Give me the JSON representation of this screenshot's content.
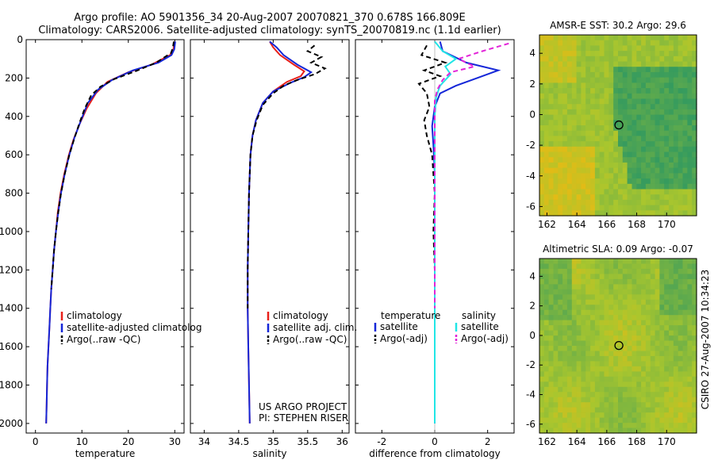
{
  "header": {
    "line1": "Argo profile: AO 5901356_34 20-Aug-2007 20070821_370 0.678S 166.809E",
    "line2": "Climatology: CARS2006. Satellite-adjusted climatology: synTS_20070819.nc (1.1d earlier)"
  },
  "colors": {
    "red": "#e8201a",
    "blue": "#1426d8",
    "black": "#000000",
    "cyan": "#21e6e6",
    "magenta": "#e224d8"
  },
  "chart_data": [
    {
      "id": "temperature",
      "type": "line",
      "xlabel": "temperature",
      "xlim": [
        -2,
        32
      ],
      "ylim": [
        0,
        2050
      ],
      "xticks": [
        0,
        10,
        20,
        30
      ],
      "yticks": [
        0,
        200,
        400,
        600,
        800,
        1000,
        1200,
        1400,
        1600,
        1800,
        2000
      ],
      "legend": [
        "climatology",
        "satellite-adjusted climatolog",
        "Argo(..raw -QC)"
      ],
      "series": [
        {
          "name": "climatology",
          "color": "red",
          "dash": false,
          "points": [
            [
              30.0,
              10
            ],
            [
              29.7,
              50
            ],
            [
              29.0,
              80
            ],
            [
              25.0,
              130
            ],
            [
              20.0,
              170
            ],
            [
              15.5,
              220
            ],
            [
              13.0,
              280
            ],
            [
              11.0,
              360
            ],
            [
              9.5,
              440
            ],
            [
              8.2,
              520
            ],
            [
              7.2,
              600
            ],
            [
              6.2,
              700
            ],
            [
              5.4,
              800
            ],
            [
              4.8,
              900
            ],
            [
              4.4,
              1000
            ],
            [
              4.0,
              1100
            ],
            [
              3.7,
              1200
            ],
            [
              3.4,
              1300
            ],
            [
              3.2,
              1400
            ],
            [
              3.0,
              1500
            ],
            [
              2.8,
              1600
            ],
            [
              2.6,
              1700
            ],
            [
              2.5,
              1800
            ],
            [
              2.4,
              1900
            ],
            [
              2.3,
              2000
            ]
          ]
        },
        {
          "name": "satellite-adjusted climatology",
          "color": "blue",
          "dash": false,
          "points": [
            [
              30.1,
              10
            ],
            [
              29.9,
              50
            ],
            [
              29.3,
              80
            ],
            [
              26.5,
              120
            ],
            [
              21.0,
              160
            ],
            [
              16.5,
              210
            ],
            [
              13.5,
              260
            ],
            [
              11.3,
              330
            ],
            [
              9.8,
              420
            ],
            [
              8.4,
              510
            ],
            [
              7.3,
              600
            ],
            [
              6.3,
              700
            ],
            [
              5.5,
              800
            ],
            [
              4.9,
              900
            ],
            [
              4.4,
              1000
            ],
            [
              4.0,
              1100
            ],
            [
              3.7,
              1200
            ],
            [
              3.4,
              1300
            ],
            [
              3.2,
              1400
            ],
            [
              3.0,
              1500
            ],
            [
              2.8,
              1600
            ],
            [
              2.6,
              1700
            ],
            [
              2.5,
              1800
            ],
            [
              2.4,
              1900
            ],
            [
              2.3,
              2000
            ]
          ]
        },
        {
          "name": "Argo(..raw -QC)",
          "color": "black",
          "dash": true,
          "points": [
            [
              29.8,
              10
            ],
            [
              29.6,
              40
            ],
            [
              29.2,
              70
            ],
            [
              26.0,
              120
            ],
            [
              21.5,
              165
            ],
            [
              17.0,
              205
            ],
            [
              14.0,
              245
            ],
            [
              12.0,
              290
            ],
            [
              10.6,
              360
            ],
            [
              9.4,
              440
            ],
            [
              8.3,
              520
            ],
            [
              7.3,
              600
            ],
            [
              6.3,
              700
            ],
            [
              5.5,
              800
            ],
            [
              4.9,
              900
            ],
            [
              4.4,
              1000
            ],
            [
              4.0,
              1100
            ],
            [
              3.7,
              1200
            ],
            [
              3.4,
              1300
            ]
          ]
        }
      ]
    },
    {
      "id": "salinity",
      "type": "line",
      "xlabel": "salinity",
      "xlim": [
        33.8,
        36.1
      ],
      "ylim": [
        0,
        2050
      ],
      "xticks": [
        34,
        34.5,
        35,
        35.5,
        36
      ],
      "legend": [
        "climatology",
        "satellite adj. clim.",
        "Argo(..raw -QC)"
      ],
      "annotation": [
        "US ARGO PROJECT",
        "PI: STEPHEN RISER"
      ],
      "series": [
        {
          "name": "climatology",
          "color": "red",
          "dash": false,
          "points": [
            [
              34.95,
              10
            ],
            [
              35.0,
              40
            ],
            [
              35.1,
              80
            ],
            [
              35.3,
              130
            ],
            [
              35.45,
              165
            ],
            [
              35.4,
              190
            ],
            [
              35.2,
              220
            ],
            [
              35.0,
              270
            ],
            [
              34.85,
              330
            ],
            [
              34.75,
              420
            ],
            [
              34.7,
              500
            ],
            [
              34.67,
              600
            ],
            [
              34.65,
              800
            ],
            [
              34.64,
              1000
            ],
            [
              34.63,
              1200
            ],
            [
              34.63,
              1400
            ],
            [
              34.64,
              1600
            ],
            [
              34.65,
              1800
            ],
            [
              34.66,
              2000
            ]
          ]
        },
        {
          "name": "satellite adj. clim.",
          "color": "blue",
          "dash": false,
          "points": [
            [
              34.95,
              10
            ],
            [
              35.05,
              40
            ],
            [
              35.15,
              80
            ],
            [
              35.35,
              130
            ],
            [
              35.55,
              170
            ],
            [
              35.45,
              195
            ],
            [
              35.25,
              225
            ],
            [
              35.0,
              270
            ],
            [
              34.85,
              330
            ],
            [
              34.75,
              420
            ],
            [
              34.7,
              500
            ],
            [
              34.67,
              600
            ],
            [
              34.65,
              800
            ],
            [
              34.64,
              1000
            ],
            [
              34.63,
              1200
            ],
            [
              34.63,
              1400
            ],
            [
              34.64,
              1600
            ],
            [
              34.65,
              1800
            ],
            [
              34.66,
              2000
            ]
          ]
        },
        {
          "name": "Argo(..raw -QC)",
          "color": "black",
          "dash": true,
          "points": [
            [
              35.6,
              30
            ],
            [
              35.5,
              60
            ],
            [
              35.7,
              90
            ],
            [
              35.55,
              120
            ],
            [
              35.75,
              150
            ],
            [
              35.6,
              180
            ],
            [
              35.35,
              210
            ],
            [
              35.15,
              240
            ],
            [
              35.0,
              280
            ],
            [
              34.85,
              340
            ],
            [
              34.76,
              420
            ],
            [
              34.7,
              500
            ],
            [
              34.67,
              600
            ],
            [
              34.65,
              800
            ],
            [
              34.64,
              1000
            ],
            [
              34.63,
              1200
            ],
            [
              34.63,
              1400
            ]
          ]
        }
      ]
    },
    {
      "id": "difference",
      "type": "line",
      "xlabel": "difference from climatology",
      "xlim": [
        -3,
        3
      ],
      "ylim": [
        0,
        2050
      ],
      "xticks": [
        -2,
        0,
        2
      ],
      "legend_t": [
        "temperature",
        "satellite",
        "Argo(-adj)"
      ],
      "legend_s": [
        "salinity",
        "satellite",
        "Argo(-adj)"
      ],
      "series": [
        {
          "name": "temperature satellite",
          "color": "blue",
          "dash": false,
          "points": [
            [
              0.2,
              10
            ],
            [
              0.3,
              60
            ],
            [
              1.2,
              120
            ],
            [
              2.4,
              160
            ],
            [
              1.6,
              200
            ],
            [
              0.8,
              240
            ],
            [
              0.2,
              280
            ],
            [
              0.0,
              350
            ],
            [
              -0.1,
              450
            ],
            [
              -0.05,
              550
            ],
            [
              0.0,
              700
            ],
            [
              0.0,
              900
            ],
            [
              0.0,
              1100
            ],
            [
              0.0,
              1300
            ],
            [
              0.0,
              1500
            ],
            [
              0.0,
              1700
            ],
            [
              0.0,
              1900
            ],
            [
              0.0,
              2000
            ]
          ]
        },
        {
          "name": "temperature Argo(-adj)",
          "color": "black",
          "dash": true,
          "points": [
            [
              -0.3,
              30
            ],
            [
              -0.5,
              80
            ],
            [
              0.4,
              120
            ],
            [
              -0.4,
              160
            ],
            [
              0.2,
              190
            ],
            [
              -0.6,
              230
            ],
            [
              -0.3,
              280
            ],
            [
              -0.2,
              350
            ],
            [
              -0.4,
              420
            ],
            [
              -0.3,
              500
            ],
            [
              -0.1,
              600
            ],
            [
              -0.05,
              700
            ],
            [
              0.0,
              800
            ],
            [
              -0.05,
              1000
            ],
            [
              0.0,
              1200
            ],
            [
              0.0,
              1400
            ]
          ]
        },
        {
          "name": "salinity satellite",
          "color": "cyan",
          "dash": false,
          "points": [
            [
              0.0,
              10
            ],
            [
              0.3,
              60
            ],
            [
              0.8,
              100
            ],
            [
              0.4,
              140
            ],
            [
              0.6,
              180
            ],
            [
              0.2,
              240
            ],
            [
              0.05,
              300
            ],
            [
              0.0,
              400
            ],
            [
              0.0,
              600
            ],
            [
              0.0,
              800
            ],
            [
              0.0,
              1000
            ],
            [
              0.0,
              1200
            ],
            [
              0.0,
              1400
            ],
            [
              0.0,
              1600
            ],
            [
              0.0,
              1800
            ],
            [
              0.0,
              2000
            ]
          ]
        },
        {
          "name": "salinity Argo(-adj)",
          "color": "magenta",
          "dash": true,
          "points": [
            [
              2.8,
              20
            ],
            [
              1.8,
              60
            ],
            [
              0.9,
              100
            ],
            [
              1.5,
              140
            ],
            [
              0.6,
              170
            ],
            [
              0.3,
              210
            ],
            [
              0.1,
              260
            ],
            [
              0.0,
              320
            ],
            [
              0.0,
              400
            ],
            [
              0.0,
              600
            ],
            [
              0.0,
              800
            ],
            [
              0.0,
              1000
            ],
            [
              0.0,
              1200
            ],
            [
              0.0,
              1400
            ]
          ]
        }
      ]
    },
    {
      "id": "sst_map",
      "type": "heatmap",
      "title": "AMSR-E SST: 30.2 Argo: 29.6",
      "xlim": [
        161.5,
        172
      ],
      "ylim": [
        -6.6,
        5.2
      ],
      "xticks": [
        162,
        164,
        166,
        168,
        170
      ],
      "yticks": [
        -6,
        -4,
        -2,
        0,
        2,
        4
      ],
      "marker": [
        166.809,
        -0.678
      ]
    },
    {
      "id": "sla_map",
      "type": "heatmap",
      "title": "Altimetric SLA: 0.09 Argo: -0.07",
      "xlim": [
        161.5,
        172
      ],
      "ylim": [
        -6.6,
        5.2
      ],
      "xticks": [
        162,
        164,
        166,
        168,
        170
      ],
      "yticks": [
        -6,
        -4,
        -2,
        0,
        2,
        4
      ],
      "marker": [
        166.809,
        -0.678
      ]
    }
  ],
  "footer": {
    "credit": "CSIRO 27-Aug-2007 10:34:23"
  }
}
